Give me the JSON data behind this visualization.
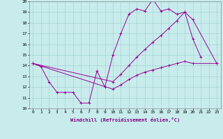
{
  "xlabel": "Windchill (Refroidissement éolien,°C)",
  "background_color": "#c8ecec",
  "line_color": "#990099",
  "xlim": [
    -0.5,
    23.5
  ],
  "ylim": [
    10,
    20
  ],
  "xticks": [
    0,
    1,
    2,
    3,
    4,
    5,
    6,
    7,
    8,
    9,
    10,
    11,
    12,
    13,
    14,
    15,
    16,
    17,
    18,
    19,
    20,
    21,
    22,
    23
  ],
  "yticks": [
    10,
    11,
    12,
    13,
    14,
    15,
    16,
    17,
    18,
    19,
    20
  ],
  "line1_x": [
    0,
    1,
    2,
    3,
    4,
    5,
    6,
    7,
    8,
    9,
    10,
    11,
    12,
    13,
    14,
    15,
    16,
    17,
    18,
    19,
    20,
    21
  ],
  "line1_y": [
    14.2,
    13.9,
    12.5,
    11.5,
    11.5,
    11.5,
    10.5,
    10.5,
    13.5,
    12.0,
    15.0,
    17.0,
    18.8,
    19.3,
    19.1,
    20.2,
    19.1,
    19.3,
    18.8,
    19.0,
    16.5,
    14.8
  ],
  "line2_x": [
    0,
    10,
    11,
    12,
    13,
    14,
    15,
    16,
    17,
    18,
    19,
    20,
    23
  ],
  "line2_y": [
    14.2,
    12.5,
    13.2,
    14.0,
    14.8,
    15.5,
    16.2,
    16.8,
    17.5,
    18.2,
    19.0,
    18.3,
    14.2
  ],
  "line3_x": [
    0,
    10,
    11,
    12,
    13,
    14,
    15,
    16,
    17,
    18,
    19,
    20,
    23
  ],
  "line3_y": [
    14.2,
    11.8,
    12.2,
    12.7,
    13.1,
    13.4,
    13.6,
    13.8,
    14.0,
    14.2,
    14.4,
    14.2,
    14.2
  ]
}
